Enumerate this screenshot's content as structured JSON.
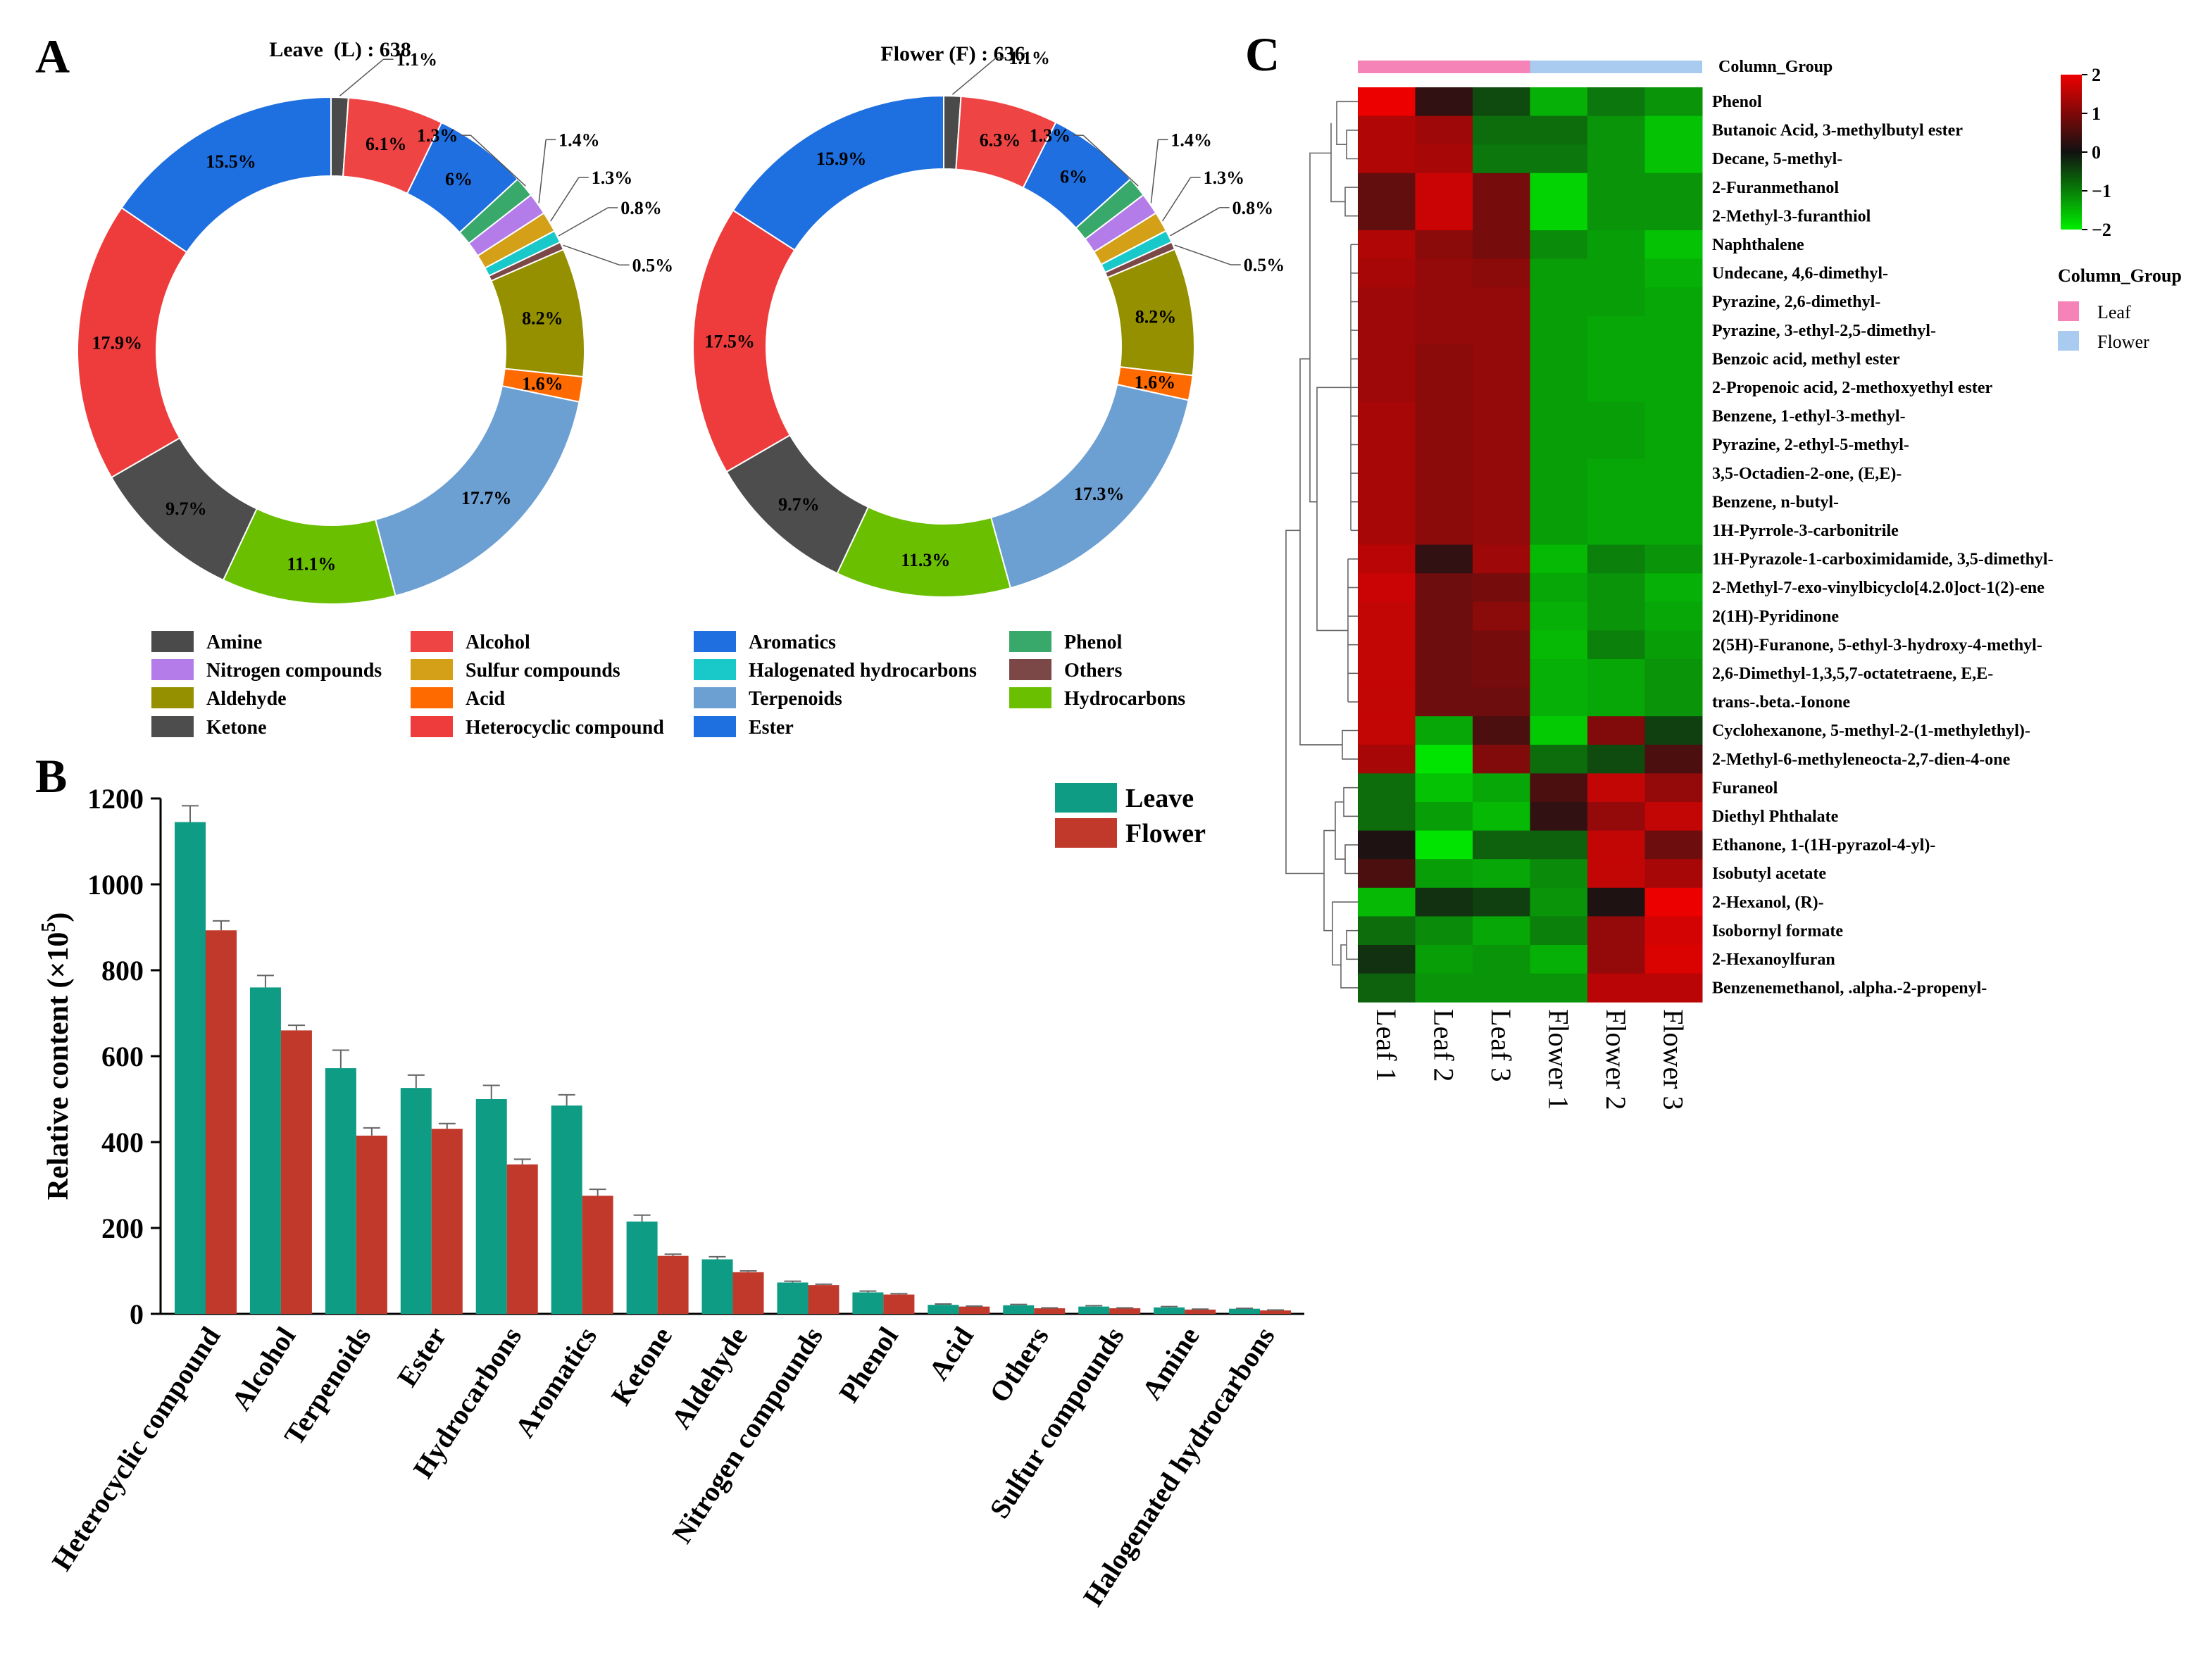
{
  "panels": {
    "a": "A",
    "b": "B",
    "c": "C"
  },
  "colors": {
    "Amine": "#4a4a4a",
    "Alcohol": "#ef4444",
    "Aromatics": "#1f6fe0",
    "Phenol": "#38a86b",
    "Nitrogen compounds": "#b47ce8",
    "Sulfur compounds": "#d4a017",
    "Halogenated hydrocarbons": "#19c9c9",
    "Others": "#7b4747",
    "Aldehyde": "#949000",
    "Acid": "#ff6a00",
    "Terpenoids": "#6c9fd2",
    "Hydrocarbons": "#6abf00",
    "Ketone": "#4d4d4d",
    "Heterocyclic compound": "#ee3c3c",
    "Ester": "#1e6fdf",
    "leave_bar": "#0e9c84",
    "flower_bar": "#c0392b",
    "leaf_group": "#f583b8",
    "flower_group": "#a8cbef"
  },
  "legend_a": [
    "Amine",
    "Alcohol",
    "Aromatics",
    "Phenol",
    "Nitrogen compounds",
    "Sulfur compounds",
    "Halogenated hydrocarbons",
    "Others",
    "Aldehyde",
    "Acid",
    "Terpenoids",
    "Hydrocarbons",
    "Ketone",
    "Heterocyclic compound",
    "Ester"
  ],
  "chart_data": [
    {
      "type": "pie",
      "title": "Leave  (L) : 638",
      "order": [
        "Amine",
        "Alcohol",
        "Aromatics",
        "Phenol",
        "Nitrogen compounds",
        "Sulfur compounds",
        "Halogenated hydrocarbons",
        "Others",
        "Aldehyde",
        "Acid",
        "Terpenoids",
        "Hydrocarbons",
        "Ketone",
        "Heterocyclic compound",
        "Ester"
      ],
      "values": [
        1.1,
        6.1,
        6.0,
        1.3,
        1.4,
        1.3,
        0.8,
        0.5,
        8.2,
        1.6,
        17.7,
        11.1,
        9.7,
        17.9,
        15.5
      ],
      "labels": [
        "1.1%",
        "6.1%",
        "6%",
        "1.3%",
        "1.4%",
        "1.3%",
        "0.8%",
        "0.5%",
        "8.2%",
        "1.6%",
        "17.7%",
        "11.1%",
        "9.7%",
        "17.9%",
        "15.5%"
      ]
    },
    {
      "type": "pie",
      "title": "Flower (F) : 636",
      "order": [
        "Amine",
        "Alcohol",
        "Aromatics",
        "Phenol",
        "Nitrogen compounds",
        "Sulfur compounds",
        "Halogenated hydrocarbons",
        "Others",
        "Aldehyde",
        "Acid",
        "Terpenoids",
        "Hydrocarbons",
        "Ketone",
        "Heterocyclic compound",
        "Ester"
      ],
      "values": [
        1.1,
        6.3,
        6.0,
        1.3,
        1.4,
        1.3,
        0.8,
        0.5,
        8.2,
        1.6,
        17.3,
        11.3,
        9.7,
        17.5,
        15.9
      ],
      "labels": [
        "1.1%",
        "6.3%",
        "6%",
        "1.3%",
        "1.4%",
        "1.3%",
        "0.8%",
        "0.5%",
        "8.2%",
        "1.6%",
        "17.3%",
        "11.3%",
        "9.7%",
        "17.5%",
        "15.9%"
      ]
    },
    {
      "type": "bar",
      "categories": [
        "Heterocyclic compound",
        "Alcohol",
        "Terpenoids",
        "Ester",
        "Hydrocarbons",
        "Aromatics",
        "Ketone",
        "Aldehyde",
        "Nitrogen compounds",
        "Phenol",
        "Acid",
        "Others",
        "Sulfur compounds",
        "Amine",
        "Halogenated hydrocarbons"
      ],
      "series": [
        {
          "name": "Leave",
          "values": [
            1145,
            760,
            572,
            526,
            500,
            485,
            215,
            127,
            73,
            50,
            21,
            20,
            17,
            15,
            12
          ],
          "errors": [
            38,
            28,
            42,
            30,
            32,
            25,
            15,
            6,
            3,
            3,
            2,
            2,
            2,
            2,
            1
          ]
        },
        {
          "name": "Flower",
          "values": [
            893,
            660,
            415,
            431,
            348,
            275,
            135,
            97,
            67,
            45,
            17,
            13,
            13,
            10,
            8
          ],
          "errors": [
            22,
            12,
            18,
            12,
            12,
            15,
            4,
            3,
            2,
            2,
            1,
            1,
            1,
            1,
            1
          ]
        }
      ],
      "ylabel": "Relative content (×10",
      "ylabel_sup": "5",
      "ylabel_end": ")",
      "ylim": [
        0,
        1200
      ],
      "yticks": [
        "0",
        "200",
        "400",
        "600",
        "800",
        "1000",
        "1200"
      ]
    },
    {
      "type": "heatmap",
      "columns": [
        "Leaf 1",
        "Leaf 2",
        "Leaf 3",
        "Flower 1",
        "Flower 2",
        "Flower 3"
      ],
      "column_group_title": "Column_Group",
      "legend_title": "Column_Group",
      "groups": [
        "Leaf",
        "Flower"
      ],
      "scale_ticks": [
        "2",
        "1",
        "0",
        "−1",
        "−2"
      ],
      "scale_range": [
        -2,
        2
      ],
      "rows": [
        "Phenol",
        "Butanoic Acid, 3-methylbutyl ester",
        "Decane, 5-methyl-",
        "2-Furanmethanol",
        "2-Methyl-3-furanthiol",
        "Naphthalene",
        "Undecane, 4,6-dimethyl-",
        "Pyrazine, 2,6-dimethyl-",
        "Pyrazine, 3-ethyl-2,5-dimethyl-",
        "Benzoic acid, methyl ester",
        "2-Propenoic acid, 2-methoxyethyl ester",
        "Benzene, 1-ethyl-3-methyl-",
        "Pyrazine, 2-ethyl-5-methyl-",
        "3,5-Octadien-2-one, (E,E)-",
        "Benzene, n-butyl-",
        "1H-Pyrrole-3-carbonitrile",
        "1H-Pyrazole-1-carboximidamide, 3,5-dimethyl-",
        "2-Methyl-7-exo-vinylbicyclo[4.2.0]oct-1(2)-ene",
        "2(1H)-Pyridinone",
        "2(5H)-Furanone, 5-ethyl-3-hydroxy-4-methyl-",
        "2,6-Dimethyl-1,3,5,7-octatetraene, E,E-",
        "trans-.beta.-Ionone",
        "Cyclohexanone, 5-methyl-2-(1-methylethyl)-",
        "2-Methyl-6-methyleneocta-2,7-dien-4-one",
        "Furaneol",
        "Diethyl Phthalate",
        "Ethanone, 1-(1H-pyrazol-4-yl)-",
        "Isobutyl acetate",
        "2-Hexanol, (R)-",
        "Isobornyl formate",
        "2-Hexanoylfuran",
        "Benzenemethanol, .alpha.-2-propenyl-"
      ],
      "values": [
        [
          2.0,
          0.1,
          -0.3,
          -1.3,
          -0.7,
          -1.0
        ],
        [
          1.3,
          1.1,
          -0.6,
          -0.6,
          -1.0,
          -1.5
        ],
        [
          1.3,
          1.2,
          -0.7,
          -0.7,
          -1.0,
          -1.5
        ],
        [
          0.5,
          1.6,
          0.7,
          -1.7,
          -1.0,
          -1.0
        ],
        [
          0.5,
          1.6,
          0.7,
          -1.7,
          -1.0,
          -1.0
        ],
        [
          1.3,
          0.9,
          0.7,
          -0.9,
          -1.1,
          -1.5
        ],
        [
          1.2,
          1.0,
          0.9,
          -1.1,
          -1.1,
          -1.3
        ],
        [
          1.1,
          1.0,
          1.0,
          -1.1,
          -1.1,
          -1.2
        ],
        [
          1.1,
          1.0,
          1.0,
          -1.1,
          -1.2,
          -1.2
        ],
        [
          1.1,
          0.9,
          1.0,
          -1.1,
          -1.2,
          -1.2
        ],
        [
          1.1,
          0.9,
          1.0,
          -1.1,
          -1.2,
          -1.2
        ],
        [
          1.2,
          0.9,
          1.0,
          -1.1,
          -1.1,
          -1.2
        ],
        [
          1.2,
          0.9,
          1.0,
          -1.1,
          -1.1,
          -1.2
        ],
        [
          1.2,
          0.9,
          1.0,
          -1.1,
          -1.2,
          -1.2
        ],
        [
          1.2,
          0.9,
          1.0,
          -1.1,
          -1.2,
          -1.2
        ],
        [
          1.2,
          0.9,
          1.0,
          -1.1,
          -1.2,
          -1.2
        ],
        [
          1.4,
          0.1,
          1.1,
          -1.4,
          -0.8,
          -1.0
        ],
        [
          1.6,
          0.6,
          0.7,
          -1.2,
          -1.0,
          -1.3
        ],
        [
          1.5,
          0.6,
          0.9,
          -1.3,
          -1.0,
          -1.2
        ],
        [
          1.5,
          0.6,
          0.7,
          -1.4,
          -0.8,
          -1.1
        ],
        [
          1.5,
          0.6,
          0.7,
          -1.3,
          -1.2,
          -1.0
        ],
        [
          1.5,
          0.6,
          0.6,
          -1.3,
          -1.2,
          -1.0
        ],
        [
          1.5,
          -1.2,
          0.3,
          -1.6,
          0.8,
          -0.2
        ],
        [
          1.2,
          -1.9,
          0.8,
          -0.6,
          -0.3,
          0.3
        ],
        [
          -0.6,
          -1.5,
          -1.2,
          0.3,
          1.5,
          1.0
        ],
        [
          -0.6,
          -1.1,
          -1.4,
          0.1,
          1.0,
          1.5
        ],
        [
          0.0,
          -1.9,
          -0.5,
          -0.5,
          1.5,
          0.6
        ],
        [
          0.3,
          -1.1,
          -1.2,
          -0.9,
          1.5,
          1.2
        ],
        [
          -1.4,
          -0.1,
          -0.2,
          -1.0,
          0.0,
          2.0
        ],
        [
          -0.6,
          -0.9,
          -1.2,
          -0.8,
          1.0,
          1.7
        ],
        [
          -0.1,
          -1.1,
          -1.0,
          -1.3,
          1.0,
          1.8
        ],
        [
          -0.5,
          -1.0,
          -1.0,
          -1.0,
          1.4,
          1.4
        ]
      ]
    }
  ]
}
